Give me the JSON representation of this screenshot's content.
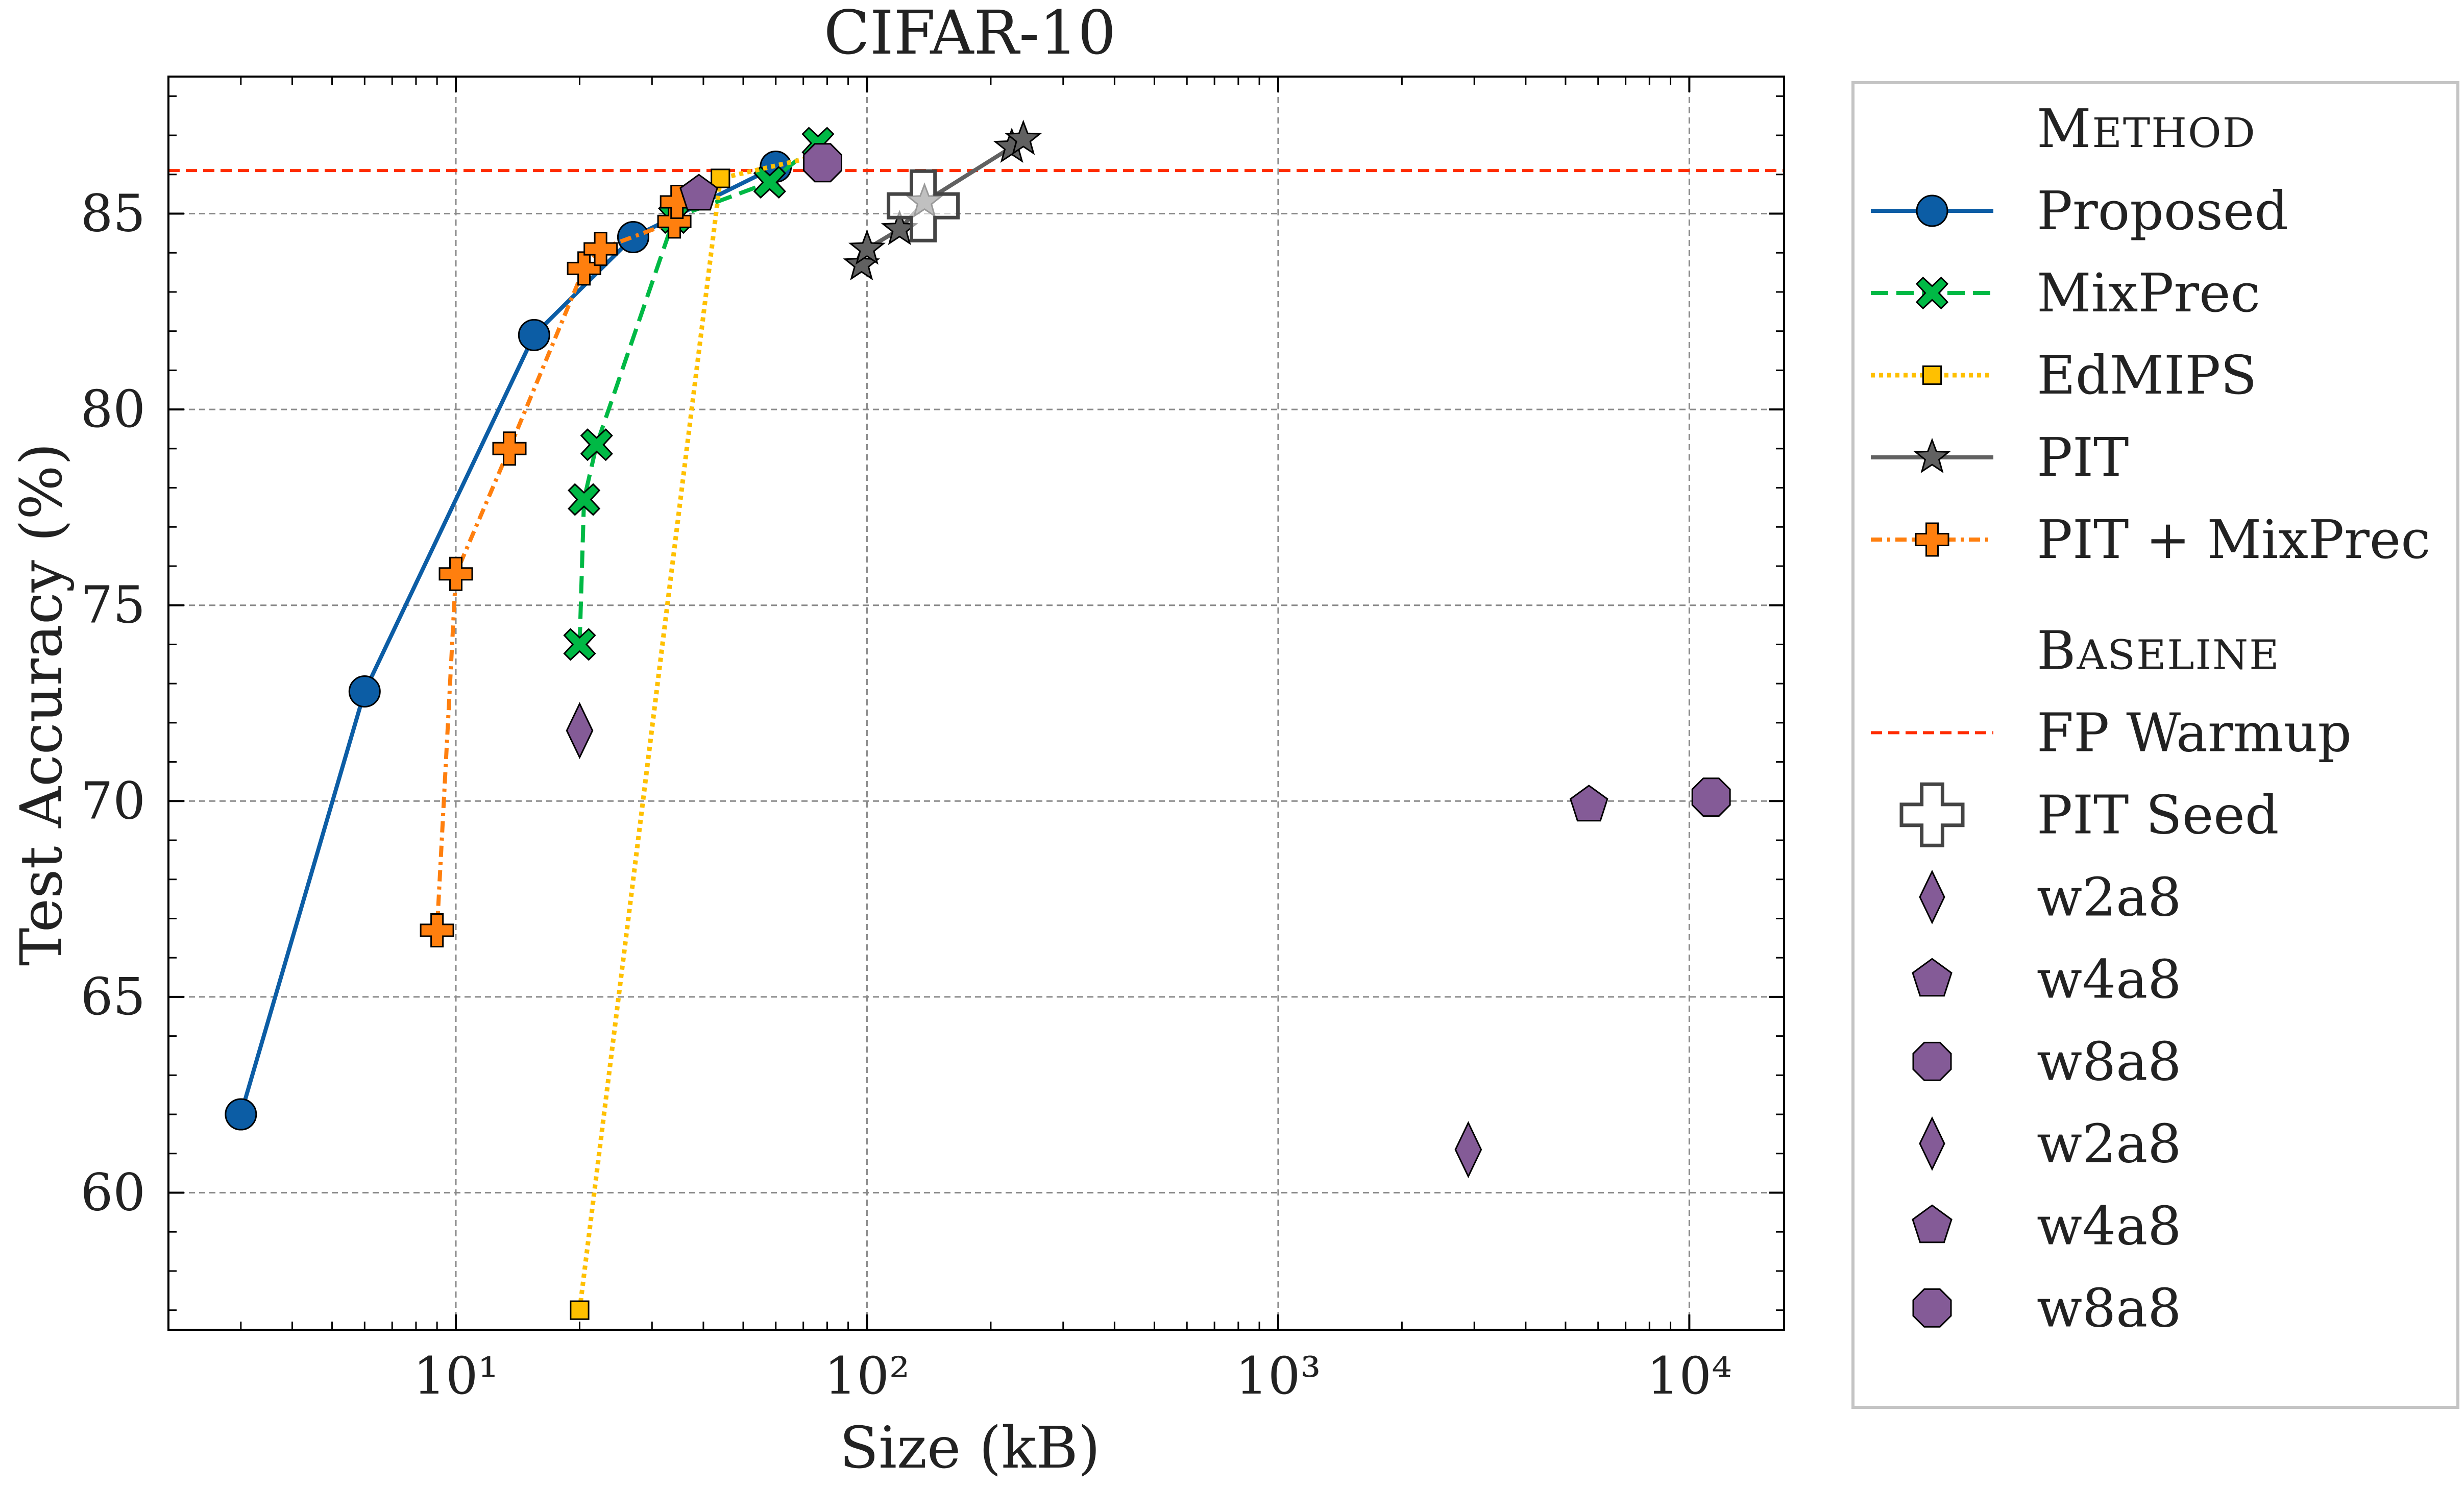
{
  "chart_data": {
    "type": "scatter",
    "title": "CIFAR-10",
    "xlabel": "Size (kB)",
    "ylabel": "Test Accuracy (%)",
    "xscale": "log",
    "xlim": [
      2,
      17000
    ],
    "ylim": [
      56.5,
      88.5
    ],
    "grid": true,
    "legend_position": "outside-right",
    "x_ticks": [
      10,
      100,
      1000,
      10000
    ],
    "x_tick_labels": [
      "10¹",
      "10²",
      "10³",
      "10⁴"
    ],
    "y_ticks": [
      60,
      65,
      70,
      75,
      80,
      85
    ],
    "y_tick_labels": [
      "60",
      "65",
      "70",
      "75",
      "80",
      "85"
    ],
    "reference_line": {
      "name": "FP Warmup",
      "y": 86.1,
      "color": "#ff2c00"
    },
    "legend_sections": [
      {
        "header_first": "M",
        "header_rest": "ETHOD"
      },
      {
        "header_first": "B",
        "header_rest": "ASELINE"
      }
    ],
    "series": [
      {
        "name": "Proposed",
        "color": "#0c5da5",
        "marker": "circle",
        "line": "solid",
        "x": [
          3.0,
          6.0,
          15.5,
          27,
          60
        ],
        "y": [
          62.0,
          72.8,
          81.9,
          84.4,
          86.2
        ]
      },
      {
        "name": "MixPrec",
        "color": "#00b945",
        "marker": "x",
        "line": "dashed",
        "x": [
          20,
          20.5,
          22,
          34,
          58,
          76
        ],
        "y": [
          74.0,
          77.7,
          79.1,
          84.9,
          85.8,
          86.8
        ]
      },
      {
        "name": "EdMIPS",
        "color": "#ffc000",
        "marker": "square",
        "line": "dotted",
        "x": [
          20,
          44,
          78
        ],
        "y": [
          57.0,
          85.9,
          86.5
        ]
      },
      {
        "name": "PIT",
        "color": "#616161",
        "marker": "star",
        "line": "solid",
        "x": [
          97,
          100,
          120,
          138,
          225,
          240
        ],
        "y": [
          83.7,
          84.1,
          84.6,
          85.3,
          86.7,
          86.9
        ]
      },
      {
        "name": "PIT + MixPrec",
        "color": "#ff7f0e",
        "marker": "plus",
        "line": "dashdot",
        "x": [
          9.0,
          10.0,
          13.5,
          20.5,
          22.5,
          34,
          34.5
        ],
        "y": [
          66.7,
          75.8,
          79.0,
          83.6,
          84.1,
          84.8,
          85.3
        ]
      }
    ],
    "baselines": [
      {
        "name": "PIT Seed",
        "marker": "open-cross",
        "color": "#444444",
        "x": 137,
        "y": 85.2
      },
      {
        "name": "w2a8",
        "marker": "thin-diamond",
        "color": "#845b97",
        "x": 2900,
        "y": 61.1
      },
      {
        "name": "w4a8",
        "marker": "pentagon",
        "color": "#845b97",
        "x": 5700,
        "y": 69.9
      },
      {
        "name": "w8a8",
        "marker": "octagon",
        "color": "#845b97",
        "x": 11300,
        "y": 70.1
      },
      {
        "name": "w2a8",
        "marker": "thin-diamond",
        "color": "#845b97",
        "x": 20,
        "y": 71.8
      },
      {
        "name": "w4a8",
        "marker": "pentagon",
        "color": "#845b97",
        "x": 39,
        "y": 85.5
      },
      {
        "name": "w8a8",
        "marker": "octagon",
        "color": "#845b97",
        "x": 78,
        "y": 86.3
      }
    ]
  }
}
